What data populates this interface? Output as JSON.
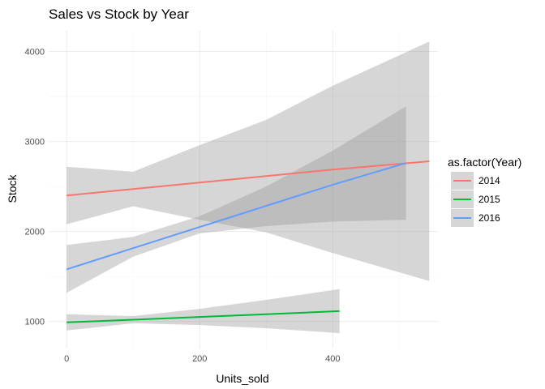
{
  "chart_data": {
    "type": "line",
    "title": "Sales vs Stock by Year",
    "xlabel": "Units_sold",
    "ylabel": "Stock",
    "xlim": [
      -27,
      558
    ],
    "ylim": [
      700,
      4230
    ],
    "x_ticks": [
      0,
      200,
      400
    ],
    "y_ticks": [
      1000,
      2000,
      3000,
      4000
    ],
    "x_minor": [
      100,
      300,
      500
    ],
    "y_minor": [
      1500,
      2500,
      3500
    ],
    "grid": true,
    "legend": {
      "title": "as.factor(Year)",
      "placement": "right"
    },
    "series": [
      {
        "name": "2014",
        "color": "#f8766d",
        "x": [
          0,
          100,
          200,
          300,
          400,
          545
        ],
        "y": [
          2400,
          2472,
          2544,
          2616,
          2688,
          2780
        ],
        "band_lower": [
          2080,
          2280,
          2130,
          1990,
          1760,
          1450
        ],
        "band_upper": [
          2720,
          2664,
          2960,
          3240,
          3620,
          4110
        ]
      },
      {
        "name": "2015",
        "color": "#00ba38",
        "x": [
          0,
          100,
          200,
          300,
          410
        ],
        "y": [
          990,
          1020,
          1050,
          1080,
          1115
        ],
        "band_lower": [
          900,
          980,
          960,
          925,
          870
        ],
        "band_upper": [
          1080,
          1060,
          1140,
          1240,
          1360
        ]
      },
      {
        "name": "2016",
        "color": "#619cff",
        "x": [
          0,
          100,
          200,
          300,
          400,
          510
        ],
        "y": [
          1580,
          1815,
          2050,
          2285,
          2520,
          2760
        ],
        "band_lower": [
          1320,
          1720,
          1980,
          2060,
          2110,
          2130
        ],
        "band_upper": [
          1850,
          1940,
          2170,
          2500,
          2900,
          3390
        ]
      }
    ]
  }
}
